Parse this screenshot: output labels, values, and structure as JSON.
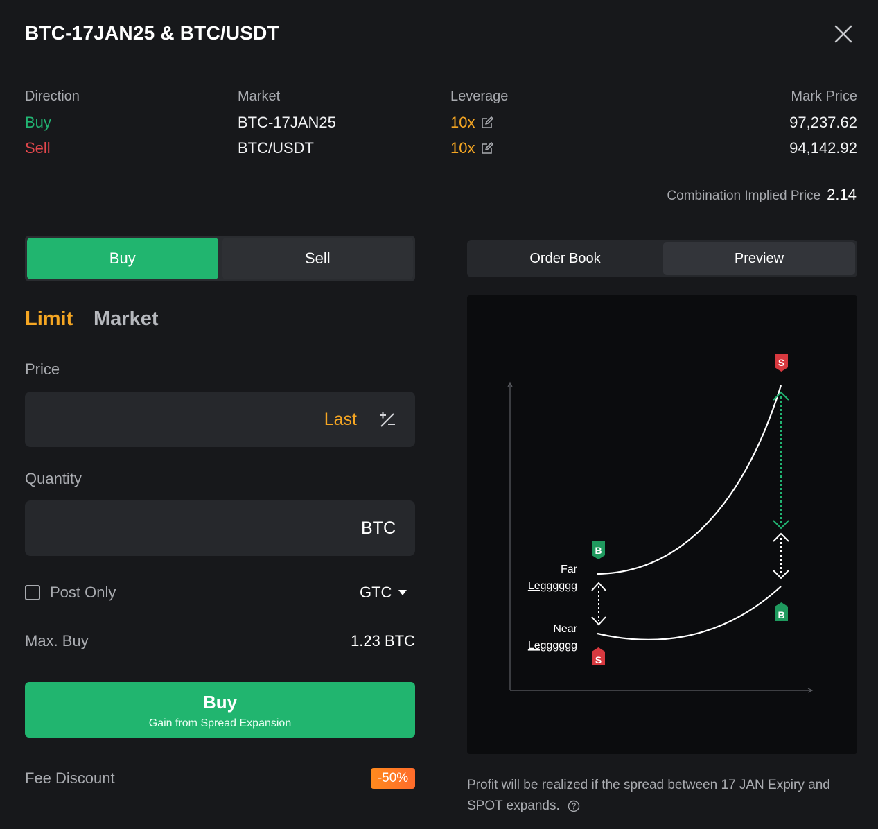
{
  "header": {
    "title": "BTC-17JAN25 & BTC/USDT"
  },
  "info": {
    "labels": {
      "direction": "Direction",
      "market": "Market",
      "leverage": "Leverage",
      "mark_price": "Mark Price"
    },
    "rows": [
      {
        "direction": "Buy",
        "market": "BTC-17JAN25",
        "leverage": "10x",
        "mark_price": "97,237.62"
      },
      {
        "direction": "Sell",
        "market": "BTC/USDT",
        "leverage": "10x",
        "mark_price": "94,142.92"
      }
    ],
    "combination_label": "Combination Implied Price",
    "combination_value": "2.14"
  },
  "order": {
    "side_tabs": [
      "Buy",
      "Sell"
    ],
    "type_tabs": [
      "Limit",
      "Market"
    ],
    "price_label": "Price",
    "price_last": "Last",
    "quantity_label": "Quantity",
    "quantity_unit": "BTC",
    "post_only": "Post Only",
    "tif": "GTC",
    "max_buy_label": "Max. Buy",
    "max_buy_value": "1.23 BTC",
    "submit_label": "Buy",
    "submit_sub": "Gain from Spread Expansion",
    "fee_label": "Fee Discount",
    "fee_badge": "-50%"
  },
  "panel": {
    "tabs": [
      "Order Book",
      "Preview"
    ],
    "diagram": {
      "far_label": "Far",
      "far_sub": "Legggggg",
      "near_label": "Near",
      "near_sub": "Legggggg",
      "tag_b": "B",
      "tag_s": "S"
    },
    "note": "Profit will be realized if the spread between 17 JAN Expiry and SPOT expands."
  },
  "colors": {
    "green": "#22b573",
    "red": "#e5484d",
    "orange": "#f5a623"
  }
}
